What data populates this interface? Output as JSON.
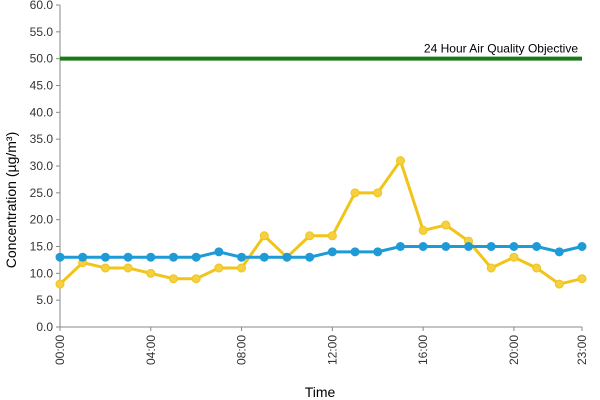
{
  "chart_data": {
    "type": "line",
    "xlabel": "Time",
    "ylabel": "Concentration (µg/m³)",
    "x": [
      "00:00",
      "01:00",
      "02:00",
      "03:00",
      "04:00",
      "05:00",
      "06:00",
      "07:00",
      "08:00",
      "09:00",
      "10:00",
      "11:00",
      "12:00",
      "13:00",
      "14:00",
      "15:00",
      "16:00",
      "17:00",
      "18:00",
      "19:00",
      "20:00",
      "21:00",
      "22:00",
      "23:00"
    ],
    "x_tick_labels": [
      "00:00",
      "04:00",
      "08:00",
      "12:00",
      "16:00",
      "20:00",
      "23:00"
    ],
    "x_tick_indices": [
      0,
      4,
      8,
      12,
      16,
      20,
      23
    ],
    "ylim": [
      0,
      60
    ],
    "y_ticks": [
      "0.0",
      "5.0",
      "10.0",
      "15.0",
      "20.0",
      "25.0",
      "30.0",
      "35.0",
      "40.0",
      "45.0",
      "50.0",
      "55.0",
      "60.0"
    ],
    "y_tick_values": [
      0,
      5,
      10,
      15,
      20,
      25,
      30,
      35,
      40,
      45,
      50,
      55,
      60
    ],
    "grid": false,
    "series": [
      {
        "color": "#f0c419",
        "marker_color": "#f5d040",
        "values": [
          8,
          12,
          11,
          11,
          10,
          9,
          9,
          11,
          11,
          17,
          13,
          17,
          17,
          25,
          25,
          31,
          18,
          19,
          16,
          11,
          13,
          11,
          8,
          9
        ]
      },
      {
        "color": "#1e9bd7",
        "marker_color": "#1e9bd7",
        "values": [
          13,
          13,
          13,
          13,
          13,
          13,
          13,
          14,
          13,
          13,
          13,
          13,
          14,
          14,
          14,
          15,
          15,
          15,
          15,
          15,
          15,
          15,
          14,
          15
        ]
      }
    ],
    "objective": {
      "value": 50,
      "label": "24 Hour Air Quality Objective",
      "color": "#1a7a1a"
    }
  }
}
